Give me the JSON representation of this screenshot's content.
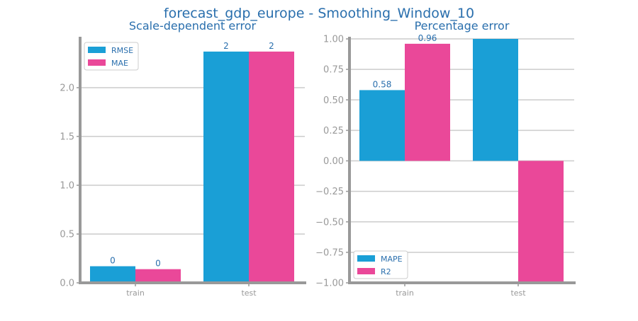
{
  "figure_title": "forecast_gdp_europe - Smoothing_Window_10",
  "colors": {
    "title": "#2a6fad",
    "blue": "#1a9fd6",
    "pink": "#ea4899",
    "axis": "#999999",
    "grid": "#cccccc",
    "tick_text": "#999999",
    "legend_text": "#2a6fad",
    "bar_label": "#2a6fad"
  },
  "chart_data": [
    {
      "type": "bar",
      "title": "Scale-dependent error",
      "categories": [
        "train",
        "test"
      ],
      "series": [
        {
          "name": "RMSE",
          "color": "#1a9fd6",
          "values": [
            0.17,
            2.37
          ],
          "labels": [
            "0",
            "2"
          ]
        },
        {
          "name": "MAE",
          "color": "#ea4899",
          "values": [
            0.14,
            2.37
          ],
          "labels": [
            "0",
            "2"
          ]
        }
      ],
      "ylim": [
        0,
        2.5
      ],
      "yticks": [
        0.0,
        0.5,
        1.0,
        1.5,
        2.0
      ],
      "ytick_labels": [
        "0.0",
        "0.5",
        "1.0",
        "1.5",
        "2.0"
      ],
      "xlabel": "",
      "ylabel": "",
      "grid": true,
      "legend": "top-left"
    },
    {
      "type": "bar",
      "title": "Percentage error",
      "categories": [
        "train",
        "test"
      ],
      "series": [
        {
          "name": "MAPE",
          "color": "#1a9fd6",
          "values": [
            0.58,
            1.0
          ],
          "labels": [
            "0.58",
            ""
          ]
        },
        {
          "name": "R2",
          "color": "#ea4899",
          "values": [
            0.96,
            -1.0
          ],
          "labels": [
            "0.96",
            ""
          ]
        }
      ],
      "ylim": [
        -1.0,
        1.0
      ],
      "yticks": [
        -1.0,
        -0.75,
        -0.5,
        -0.25,
        0.0,
        0.25,
        0.5,
        0.75,
        1.0
      ],
      "ytick_labels": [
        "−1.00",
        "−0.75",
        "−0.50",
        "−0.25",
        "0.00",
        "0.25",
        "0.50",
        "0.75",
        "1.00"
      ],
      "xlabel": "",
      "ylabel": "",
      "grid": true,
      "legend": "bottom-left"
    }
  ]
}
